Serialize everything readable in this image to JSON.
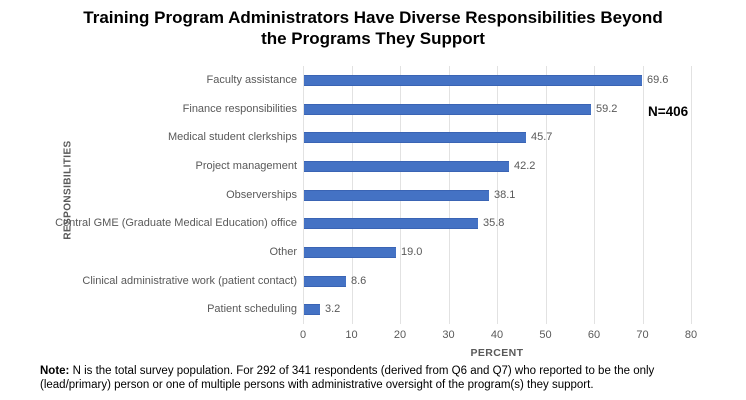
{
  "title": "Training Program Administrators Have Diverse Responsibilities Beyond the Programs They Support",
  "n_label": "N=406",
  "chart_data": {
    "type": "bar",
    "orientation": "horizontal",
    "title": "Training Program Administrators Have Diverse Responsibilities Beyond the Programs They Support",
    "categories": [
      "Faculty assistance",
      "Finance responsibilities",
      "Medical student clerkships",
      "Project management",
      "Observerships",
      "Central GME (Graduate Medical Education) office",
      "Other",
      "Clinical administrative work (patient contact)",
      "Patient scheduling"
    ],
    "values": [
      69.6,
      59.2,
      45.7,
      42.2,
      38.1,
      35.8,
      19.0,
      8.6,
      3.2
    ],
    "value_labels": [
      "69.6",
      "59.2",
      "45.7",
      "42.2",
      "38.1",
      "35.8",
      "19.0",
      "8.6",
      "3.2"
    ],
    "xlabel": "PERCENT",
    "ylabel": "RESPONSIBILITIES",
    "xlim": [
      0,
      80
    ],
    "xticks": [
      0,
      10,
      20,
      30,
      40,
      50,
      60,
      70,
      80
    ],
    "bar_color": "#4472C4",
    "gridline_color": "#e2e2e2",
    "axis_label_color": "#595959",
    "grid": true,
    "legend": false,
    "annotation": "N=406"
  },
  "note": {
    "label": "Note:",
    "line1_rest": " N is the total survey population. For 292 of 341 respondents (derived from Q6 and Q7) who reported to be the only",
    "line2": "(lead/primary) person or one of multiple persons with administrative oversight of the program(s) they support."
  }
}
